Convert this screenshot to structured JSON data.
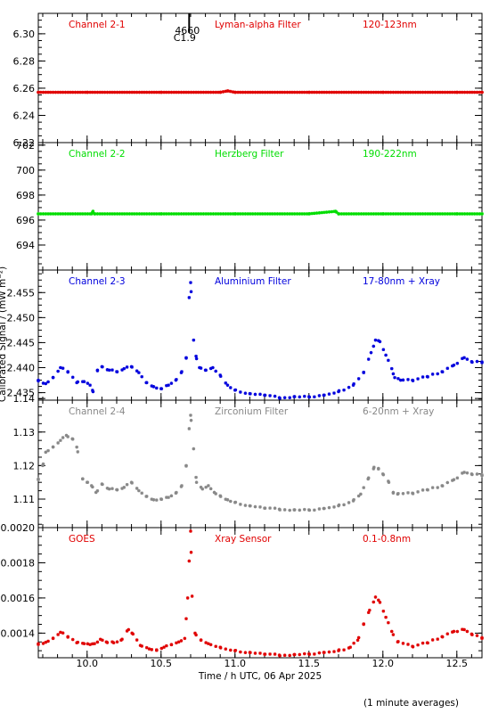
{
  "chart_data": {
    "type": "scatter",
    "xlabel": "Time / h UTC, 06 Apr 2025",
    "ylabel": "Calibrated Signal / (mW m⁻²)",
    "footnote": "(1 minute averages)",
    "xlim": [
      9.67,
      12.67
    ],
    "xticks": [
      "10.0",
      "10.5",
      "11.0",
      "11.5",
      "12.0",
      "12.5"
    ],
    "xtick_values": [
      10.0,
      10.5,
      11.0,
      11.5,
      12.0,
      12.5
    ],
    "flare_marker": {
      "x": 10.69,
      "label_top": "4660",
      "label_bottom": "C1.9"
    },
    "panels": [
      {
        "name": "Channel 2-1",
        "filter": "Lyman-alpha Filter",
        "band": "120-123nm",
        "color": "#e00000",
        "ylim": [
          6.22,
          6.315
        ],
        "yticks": [
          "6.22",
          "6.24",
          "6.26",
          "6.28",
          "6.30"
        ],
        "ytick_values": [
          6.22,
          6.24,
          6.26,
          6.28,
          6.3
        ],
        "points": [
          [
            9.67,
            6.257
          ],
          [
            10.0,
            6.257
          ],
          [
            10.5,
            6.257
          ],
          [
            10.9,
            6.257
          ],
          [
            10.95,
            6.258
          ],
          [
            11.0,
            6.257
          ],
          [
            11.5,
            6.257
          ],
          [
            12.0,
            6.257
          ],
          [
            12.5,
            6.257
          ],
          [
            12.67,
            6.257
          ]
        ]
      },
      {
        "name": "Channel 2-2",
        "filter": "Herzberg Filter",
        "band": "190-222nm",
        "color": "#00dd00",
        "ylim": [
          692.0,
          702.2
        ],
        "yticks": [
          "694",
          "696",
          "698",
          "700",
          "702"
        ],
        "ytick_values": [
          694,
          696,
          698,
          700,
          702
        ],
        "points": [
          [
            9.67,
            696.5
          ],
          [
            10.03,
            696.5
          ],
          [
            10.04,
            696.7
          ],
          [
            10.05,
            696.5
          ],
          [
            10.5,
            696.5
          ],
          [
            11.0,
            696.5
          ],
          [
            11.5,
            696.5
          ],
          [
            11.68,
            696.7
          ],
          [
            11.7,
            696.5
          ],
          [
            12.0,
            696.5
          ],
          [
            12.5,
            696.5
          ],
          [
            12.67,
            696.5
          ]
        ]
      },
      {
        "name": "Channel 2-3",
        "filter": "Aluminium Filter",
        "band": "17-80nm + Xray",
        "color": "#0000dd",
        "ylim": [
          2.4335,
          2.4595
        ],
        "yticks": [
          "2.435",
          "2.440",
          "2.445",
          "2.450",
          "2.455"
        ],
        "ytick_values": [
          2.435,
          2.44,
          2.445,
          2.45,
          2.455
        ],
        "points": [
          [
            9.67,
            2.4375
          ],
          [
            9.72,
            2.4368
          ],
          [
            9.77,
            2.438
          ],
          [
            9.82,
            2.44
          ],
          [
            9.87,
            2.4392
          ],
          [
            9.93,
            2.437
          ],
          [
            9.98,
            2.4372
          ],
          [
            10.02,
            2.4365
          ],
          [
            10.04,
            2.4352
          ],
          [
            10.07,
            2.4395
          ],
          [
            10.1,
            2.4402
          ],
          [
            10.15,
            2.4395
          ],
          [
            10.2,
            2.4392
          ],
          [
            10.25,
            2.4398
          ],
          [
            10.3,
            2.4402
          ],
          [
            10.35,
            2.439
          ],
          [
            10.4,
            2.437
          ],
          [
            10.45,
            2.4362
          ],
          [
            10.5,
            2.4358
          ],
          [
            10.55,
            2.4365
          ],
          [
            10.6,
            2.4375
          ],
          [
            10.64,
            2.4392
          ],
          [
            10.67,
            2.442
          ],
          [
            10.69,
            2.454
          ],
          [
            10.7,
            2.457
          ],
          [
            10.72,
            2.4455
          ],
          [
            10.74,
            2.4418
          ],
          [
            10.76,
            2.44
          ],
          [
            10.8,
            2.4395
          ],
          [
            10.85,
            2.44
          ],
          [
            10.9,
            2.4385
          ],
          [
            10.95,
            2.4365
          ],
          [
            11.0,
            2.4355
          ],
          [
            11.1,
            2.4348
          ],
          [
            11.2,
            2.4345
          ],
          [
            11.3,
            2.434
          ],
          [
            11.4,
            2.4342
          ],
          [
            11.5,
            2.4342
          ],
          [
            11.6,
            2.4345
          ],
          [
            11.7,
            2.4352
          ],
          [
            11.8,
            2.4365
          ],
          [
            11.87,
            2.439
          ],
          [
            11.92,
            2.443
          ],
          [
            11.95,
            2.4455
          ],
          [
            11.98,
            2.4452
          ],
          [
            12.02,
            2.4425
          ],
          [
            12.06,
            2.4398
          ],
          [
            12.08,
            2.438
          ],
          [
            12.12,
            2.4375
          ],
          [
            12.2,
            2.4375
          ],
          [
            12.3,
            2.4382
          ],
          [
            12.4,
            2.4392
          ],
          [
            12.48,
            2.4405
          ],
          [
            12.55,
            2.442
          ],
          [
            12.6,
            2.4412
          ],
          [
            12.67,
            2.441
          ]
        ]
      },
      {
        "name": "Channel 2-4",
        "filter": "Zirconium Filter",
        "band": "6-20nm + Xray",
        "color": "#888888",
        "ylim": [
          1.1015,
          1.1395
        ],
        "yticks": [
          "1.11",
          "1.12",
          "1.13",
          "1.14"
        ],
        "ytick_values": [
          1.11,
          1.12,
          1.13,
          1.14
        ],
        "points": [
          [
            9.67,
            1.116
          ],
          [
            9.7,
            1.12
          ],
          [
            9.72,
            1.124
          ],
          [
            9.77,
            1.1255
          ],
          [
            9.82,
            1.1275
          ],
          [
            9.86,
            1.129
          ],
          [
            9.9,
            1.128
          ],
          [
            9.93,
            1.1255
          ],
          [
            9.97,
            1.116
          ],
          [
            10.0,
            1.115
          ],
          [
            10.03,
            1.114
          ],
          [
            10.06,
            1.112
          ],
          [
            10.1,
            1.1145
          ],
          [
            10.15,
            1.113
          ],
          [
            10.2,
            1.1128
          ],
          [
            10.25,
            1.1135
          ],
          [
            10.3,
            1.115
          ],
          [
            10.35,
            1.1125
          ],
          [
            10.4,
            1.1108
          ],
          [
            10.45,
            1.1098
          ],
          [
            10.5,
            1.11
          ],
          [
            10.55,
            1.1105
          ],
          [
            10.6,
            1.1118
          ],
          [
            10.64,
            1.114
          ],
          [
            10.67,
            1.12
          ],
          [
            10.69,
            1.131
          ],
          [
            10.7,
            1.135
          ],
          [
            10.72,
            1.125
          ],
          [
            10.74,
            1.115
          ],
          [
            10.78,
            1.113
          ],
          [
            10.82,
            1.114
          ],
          [
            10.86,
            1.112
          ],
          [
            10.9,
            1.111
          ],
          [
            10.95,
            1.1098
          ],
          [
            11.0,
            1.109
          ],
          [
            11.1,
            1.108
          ],
          [
            11.2,
            1.1073
          ],
          [
            11.3,
            1.107
          ],
          [
            11.4,
            1.1068
          ],
          [
            11.5,
            1.1068
          ],
          [
            11.6,
            1.1072
          ],
          [
            11.7,
            1.108
          ],
          [
            11.8,
            1.1095
          ],
          [
            11.85,
            1.1115
          ],
          [
            11.9,
            1.116
          ],
          [
            11.94,
            1.1195
          ],
          [
            11.97,
            1.119
          ],
          [
            12.0,
            1.1175
          ],
          [
            12.04,
            1.115
          ],
          [
            12.07,
            1.112
          ],
          [
            12.1,
            1.1115
          ],
          [
            12.2,
            1.1118
          ],
          [
            12.3,
            1.1128
          ],
          [
            12.4,
            1.114
          ],
          [
            12.48,
            1.1158
          ],
          [
            12.55,
            1.118
          ],
          [
            12.6,
            1.1175
          ],
          [
            12.67,
            1.117
          ]
        ]
      },
      {
        "name": "GOES",
        "filter": "Xray Sensor",
        "band": "0.1-0.8nm",
        "color": "#e00000",
        "ylim": [
          0.00126,
          0.002
        ],
        "yticks": [
          "0.0014",
          "0.0016",
          "0.0018",
          "0.0020"
        ],
        "ytick_values": [
          0.0014,
          0.0016,
          0.0018,
          0.002
        ],
        "points": [
          [
            9.67,
            0.00134
          ],
          [
            9.72,
            0.001348
          ],
          [
            9.77,
            0.00137
          ],
          [
            9.82,
            0.001405
          ],
          [
            9.87,
            0.00138
          ],
          [
            9.93,
            0.001345
          ],
          [
            9.98,
            0.00134
          ],
          [
            10.02,
            0.001335
          ],
          [
            10.05,
            0.00134
          ],
          [
            10.09,
            0.001365
          ],
          [
            10.13,
            0.00135
          ],
          [
            10.18,
            0.001345
          ],
          [
            10.23,
            0.00136
          ],
          [
            10.28,
            0.00142
          ],
          [
            10.31,
            0.001395
          ],
          [
            10.36,
            0.00133
          ],
          [
            10.42,
            0.00131
          ],
          [
            10.47,
            0.001305
          ],
          [
            10.52,
            0.00132
          ],
          [
            10.57,
            0.001335
          ],
          [
            10.62,
            0.00135
          ],
          [
            10.66,
            0.00137
          ],
          [
            10.68,
            0.0016
          ],
          [
            10.69,
            0.00181
          ],
          [
            10.7,
            0.00198
          ],
          [
            10.71,
            0.00161
          ],
          [
            10.73,
            0.0014
          ],
          [
            10.77,
            0.00136
          ],
          [
            10.82,
            0.00134
          ],
          [
            10.9,
            0.00132
          ],
          [
            11.0,
            0.0013
          ],
          [
            11.1,
            0.00129
          ],
          [
            11.2,
            0.00128
          ],
          [
            11.3,
            0.001275
          ],
          [
            11.4,
            0.001278
          ],
          [
            11.5,
            0.001282
          ],
          [
            11.6,
            0.00129
          ],
          [
            11.7,
            0.0013
          ],
          [
            11.78,
            0.00132
          ],
          [
            11.83,
            0.00136
          ],
          [
            11.87,
            0.00145
          ],
          [
            11.91,
            0.00153
          ],
          [
            11.95,
            0.001605
          ],
          [
            11.98,
            0.001575
          ],
          [
            12.02,
            0.00149
          ],
          [
            12.06,
            0.00141
          ],
          [
            12.1,
            0.00135
          ],
          [
            12.2,
            0.001325
          ],
          [
            12.3,
            0.001345
          ],
          [
            12.4,
            0.00138
          ],
          [
            12.48,
            0.00141
          ],
          [
            12.55,
            0.00142
          ],
          [
            12.6,
            0.001395
          ],
          [
            12.67,
            0.00137
          ]
        ]
      }
    ]
  }
}
